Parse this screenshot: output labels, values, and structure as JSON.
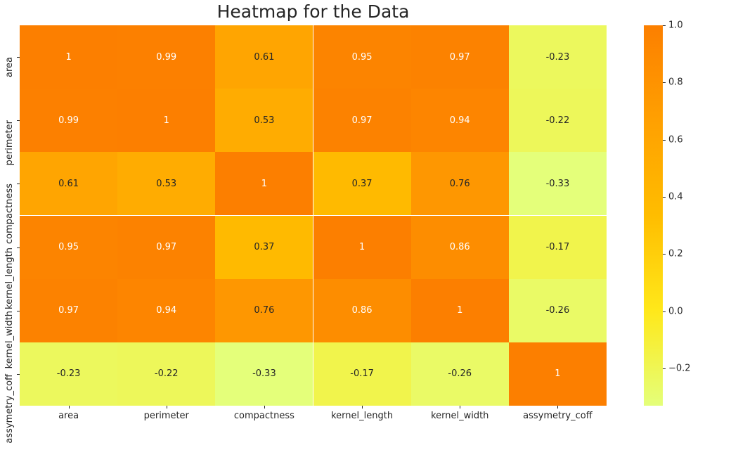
{
  "figure": {
    "background": "#ffffff",
    "text_color": "#262626"
  },
  "chart_data": {
    "type": "heatmap",
    "title": "Heatmap for the Data",
    "x_labels": [
      "area",
      "perimeter",
      "compactness",
      "kernel_length",
      "kernel_width",
      "assymetry_coff"
    ],
    "y_labels": [
      "area",
      "perimeter",
      "compactness",
      "kernel_length",
      "kernel_width",
      "assymetry_coff"
    ],
    "matrix": [
      [
        1,
        0.99,
        0.61,
        0.95,
        0.97,
        -0.23
      ],
      [
        0.99,
        1,
        0.53,
        0.97,
        0.94,
        -0.22
      ],
      [
        0.61,
        0.53,
        1,
        0.37,
        0.76,
        -0.33
      ],
      [
        0.95,
        0.97,
        0.37,
        1,
        0.86,
        -0.17
      ],
      [
        0.97,
        0.94,
        0.76,
        0.86,
        1,
        -0.26
      ],
      [
        -0.23,
        -0.22,
        -0.33,
        -0.17,
        -0.26,
        1
      ]
    ],
    "vmin": -0.33,
    "vmax": 1.0,
    "grid": false,
    "annotations": true,
    "annotation_colors": {
      "light_text": "#ffffff",
      "dark_text": "#262626"
    },
    "colormap": {
      "name": "Wistia",
      "stops": [
        {
          "t": 0.0,
          "color": "#e4ff7a"
        },
        {
          "t": 0.25,
          "color": "#ffe81a"
        },
        {
          "t": 0.5,
          "color": "#ffbd00"
        },
        {
          "t": 0.75,
          "color": "#ffa001"
        },
        {
          "t": 1.0,
          "color": "#fc7f00"
        }
      ]
    },
    "colorbar": {
      "position": "right",
      "ticks": [
        {
          "value": 1.0,
          "label": "1.0"
        },
        {
          "value": 0.8,
          "label": "0.8"
        },
        {
          "value": 0.6,
          "label": "0.6"
        },
        {
          "value": 0.4,
          "label": "0.4"
        },
        {
          "value": 0.2,
          "label": "0.2"
        },
        {
          "value": 0.0,
          "label": "0.0"
        },
        {
          "value": -0.2,
          "label": "−0.2"
        }
      ]
    }
  }
}
